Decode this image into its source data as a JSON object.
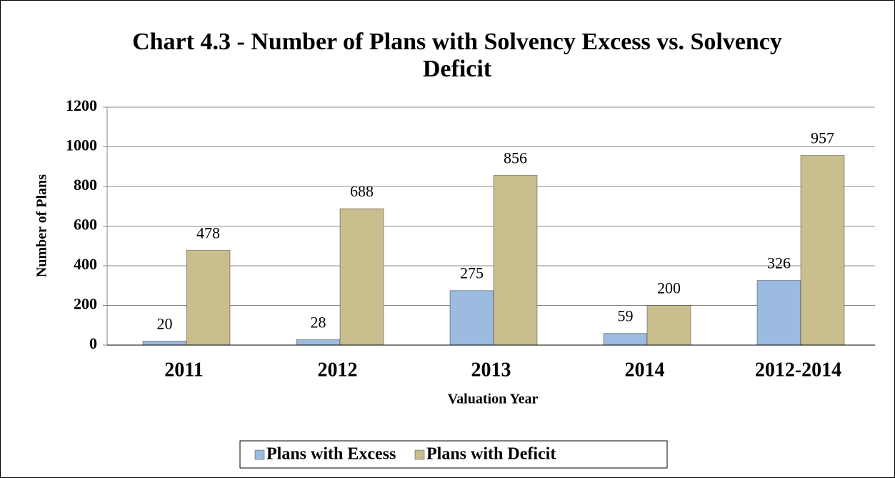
{
  "chart_data": {
    "type": "bar",
    "title": "Chart 4.3 - Number of Plans with Solvency Excess vs. Solvency Deficit",
    "x_label": "Valuation Year",
    "y_label": "Number of Plans",
    "categories": [
      "2011",
      "2012",
      "2013",
      "2014",
      "2012-2014"
    ],
    "series": [
      {
        "name": "Plans with Excess",
        "color": "#9bbbe0",
        "values": [
          20,
          28,
          275,
          59,
          326
        ]
      },
      {
        "name": "Plans with Deficit",
        "color": "#c9be8e",
        "values": [
          478,
          688,
          856,
          200,
          957
        ]
      }
    ],
    "ylim": [
      0,
      1200
    ],
    "yticks": [
      0,
      200,
      400,
      600,
      800,
      1000,
      1200
    ],
    "grid": true,
    "legend": "bottom"
  }
}
